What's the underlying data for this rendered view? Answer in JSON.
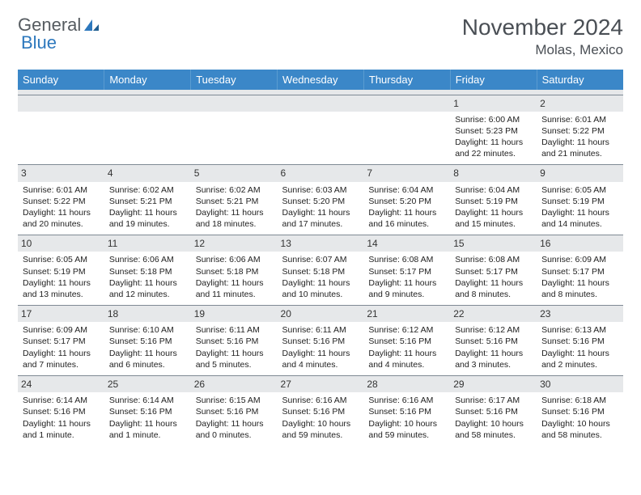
{
  "logo": {
    "text_general": "General",
    "text_blue": "Blue"
  },
  "title": "November 2024",
  "location": "Molas, Mexico",
  "colors": {
    "header_bg": "#3b87c8",
    "header_text": "#ffffff",
    "daynum_bg": "#e6e8ea",
    "border": "#7f8a94",
    "title_color": "#4a4f55",
    "logo_gray": "#555b60",
    "logo_blue": "#2d78bd"
  },
  "day_headers": [
    "Sunday",
    "Monday",
    "Tuesday",
    "Wednesday",
    "Thursday",
    "Friday",
    "Saturday"
  ],
  "weeks": [
    [
      {
        "num": "",
        "lines": []
      },
      {
        "num": "",
        "lines": []
      },
      {
        "num": "",
        "lines": []
      },
      {
        "num": "",
        "lines": []
      },
      {
        "num": "",
        "lines": []
      },
      {
        "num": "1",
        "lines": [
          "Sunrise: 6:00 AM",
          "Sunset: 5:23 PM",
          "Daylight: 11 hours and 22 minutes."
        ]
      },
      {
        "num": "2",
        "lines": [
          "Sunrise: 6:01 AM",
          "Sunset: 5:22 PM",
          "Daylight: 11 hours and 21 minutes."
        ]
      }
    ],
    [
      {
        "num": "3",
        "lines": [
          "Sunrise: 6:01 AM",
          "Sunset: 5:22 PM",
          "Daylight: 11 hours and 20 minutes."
        ]
      },
      {
        "num": "4",
        "lines": [
          "Sunrise: 6:02 AM",
          "Sunset: 5:21 PM",
          "Daylight: 11 hours and 19 minutes."
        ]
      },
      {
        "num": "5",
        "lines": [
          "Sunrise: 6:02 AM",
          "Sunset: 5:21 PM",
          "Daylight: 11 hours and 18 minutes."
        ]
      },
      {
        "num": "6",
        "lines": [
          "Sunrise: 6:03 AM",
          "Sunset: 5:20 PM",
          "Daylight: 11 hours and 17 minutes."
        ]
      },
      {
        "num": "7",
        "lines": [
          "Sunrise: 6:04 AM",
          "Sunset: 5:20 PM",
          "Daylight: 11 hours and 16 minutes."
        ]
      },
      {
        "num": "8",
        "lines": [
          "Sunrise: 6:04 AM",
          "Sunset: 5:19 PM",
          "Daylight: 11 hours and 15 minutes."
        ]
      },
      {
        "num": "9",
        "lines": [
          "Sunrise: 6:05 AM",
          "Sunset: 5:19 PM",
          "Daylight: 11 hours and 14 minutes."
        ]
      }
    ],
    [
      {
        "num": "10",
        "lines": [
          "Sunrise: 6:05 AM",
          "Sunset: 5:19 PM",
          "Daylight: 11 hours and 13 minutes."
        ]
      },
      {
        "num": "11",
        "lines": [
          "Sunrise: 6:06 AM",
          "Sunset: 5:18 PM",
          "Daylight: 11 hours and 12 minutes."
        ]
      },
      {
        "num": "12",
        "lines": [
          "Sunrise: 6:06 AM",
          "Sunset: 5:18 PM",
          "Daylight: 11 hours and 11 minutes."
        ]
      },
      {
        "num": "13",
        "lines": [
          "Sunrise: 6:07 AM",
          "Sunset: 5:18 PM",
          "Daylight: 11 hours and 10 minutes."
        ]
      },
      {
        "num": "14",
        "lines": [
          "Sunrise: 6:08 AM",
          "Sunset: 5:17 PM",
          "Daylight: 11 hours and 9 minutes."
        ]
      },
      {
        "num": "15",
        "lines": [
          "Sunrise: 6:08 AM",
          "Sunset: 5:17 PM",
          "Daylight: 11 hours and 8 minutes."
        ]
      },
      {
        "num": "16",
        "lines": [
          "Sunrise: 6:09 AM",
          "Sunset: 5:17 PM",
          "Daylight: 11 hours and 8 minutes."
        ]
      }
    ],
    [
      {
        "num": "17",
        "lines": [
          "Sunrise: 6:09 AM",
          "Sunset: 5:17 PM",
          "Daylight: 11 hours and 7 minutes."
        ]
      },
      {
        "num": "18",
        "lines": [
          "Sunrise: 6:10 AM",
          "Sunset: 5:16 PM",
          "Daylight: 11 hours and 6 minutes."
        ]
      },
      {
        "num": "19",
        "lines": [
          "Sunrise: 6:11 AM",
          "Sunset: 5:16 PM",
          "Daylight: 11 hours and 5 minutes."
        ]
      },
      {
        "num": "20",
        "lines": [
          "Sunrise: 6:11 AM",
          "Sunset: 5:16 PM",
          "Daylight: 11 hours and 4 minutes."
        ]
      },
      {
        "num": "21",
        "lines": [
          "Sunrise: 6:12 AM",
          "Sunset: 5:16 PM",
          "Daylight: 11 hours and 4 minutes."
        ]
      },
      {
        "num": "22",
        "lines": [
          "Sunrise: 6:12 AM",
          "Sunset: 5:16 PM",
          "Daylight: 11 hours and 3 minutes."
        ]
      },
      {
        "num": "23",
        "lines": [
          "Sunrise: 6:13 AM",
          "Sunset: 5:16 PM",
          "Daylight: 11 hours and 2 minutes."
        ]
      }
    ],
    [
      {
        "num": "24",
        "lines": [
          "Sunrise: 6:14 AM",
          "Sunset: 5:16 PM",
          "Daylight: 11 hours and 1 minute."
        ]
      },
      {
        "num": "25",
        "lines": [
          "Sunrise: 6:14 AM",
          "Sunset: 5:16 PM",
          "Daylight: 11 hours and 1 minute."
        ]
      },
      {
        "num": "26",
        "lines": [
          "Sunrise: 6:15 AM",
          "Sunset: 5:16 PM",
          "Daylight: 11 hours and 0 minutes."
        ]
      },
      {
        "num": "27",
        "lines": [
          "Sunrise: 6:16 AM",
          "Sunset: 5:16 PM",
          "Daylight: 10 hours and 59 minutes."
        ]
      },
      {
        "num": "28",
        "lines": [
          "Sunrise: 6:16 AM",
          "Sunset: 5:16 PM",
          "Daylight: 10 hours and 59 minutes."
        ]
      },
      {
        "num": "29",
        "lines": [
          "Sunrise: 6:17 AM",
          "Sunset: 5:16 PM",
          "Daylight: 10 hours and 58 minutes."
        ]
      },
      {
        "num": "30",
        "lines": [
          "Sunrise: 6:18 AM",
          "Sunset: 5:16 PM",
          "Daylight: 10 hours and 58 minutes."
        ]
      }
    ]
  ]
}
